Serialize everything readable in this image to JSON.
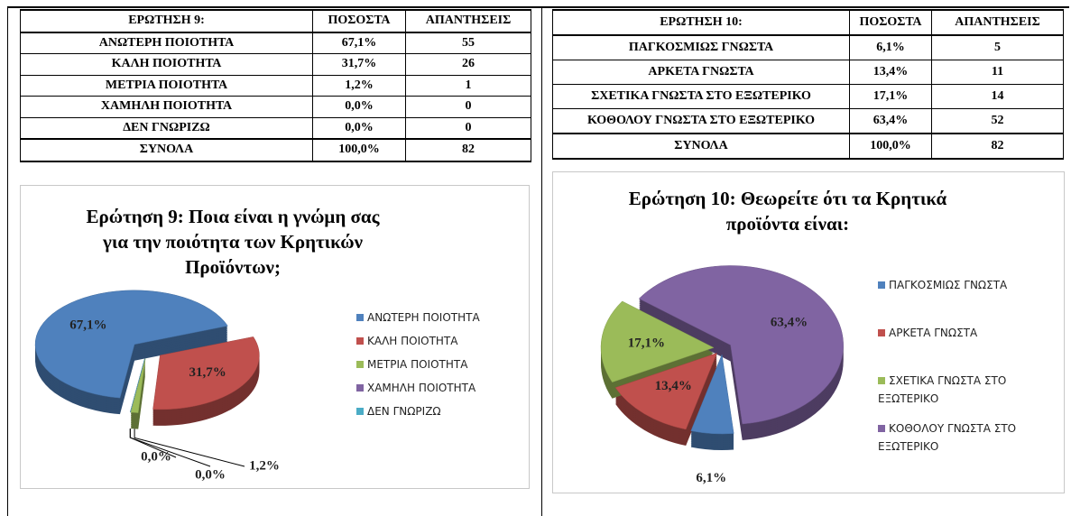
{
  "tables": [
    {
      "header": [
        "ΕΡΩΤΗΣΗ 9:",
        "ΠΟΣΟΣΤΑ",
        "ΑΠΑΝΤΗΣΕΙΣ"
      ],
      "rows": [
        [
          "ΑΝΩΤΕΡΗ ΠΟΙΟΤΗΤΑ",
          "67,1%",
          55
        ],
        [
          "ΚΑΛΗ ΠΟΙΟΤΗΤΑ",
          "31,7%",
          26
        ],
        [
          "ΜΕΤΡΙΑ ΠΟΙΟΤΗΤΑ",
          "1,2%",
          1
        ],
        [
          "ΧΑΜΗΛΗ ΠΟΙΟΤΗΤΑ",
          "0,0%",
          0
        ],
        [
          "ΔΕΝ ΓΝΩΡΙΖΩ",
          "0,0%",
          0
        ]
      ],
      "total": [
        "ΣΥΝΟΛΑ",
        "100,0%",
        82
      ]
    },
    {
      "header": [
        "ΕΡΩΤΗΣΗ 10:",
        "ΠΟΣΟΣΤΑ",
        "ΑΠΑΝΤΗΣΕΙΣ"
      ],
      "rows": [
        [
          "ΠΑΓΚΟΣΜΙΩΣ ΓΝΩΣΤΑ",
          "6,1%",
          5
        ],
        [
          "ΑΡΚΕΤΑ ΓΝΩΣΤΑ",
          "13,4%",
          11
        ],
        [
          "ΣΧΕΤΙΚΑ ΓΝΩΣΤΑ ΣΤΟ ΕΞΩΤΕΡΙΚΟ",
          "17,1%",
          14
        ],
        [
          "ΚΟΘΟΛΟΥ ΓΝΩΣΤΑ ΣΤΟ ΕΞΩΤΕΡΙΚΟ",
          "63,4%",
          52
        ]
      ],
      "total": [
        "ΣΥΝΟΛΑ",
        "100,0%",
        82
      ]
    }
  ],
  "chart_data": [
    {
      "type": "pie",
      "title": "Ερώτηση 9: Ποια είναι η γνώμη σας για την ποιότητα των Κρητικών Προϊόντων;",
      "categories": [
        "ΑΝΩΤΕΡΗ ΠΟΙΟΤΗΤΑ",
        "ΚΑΛΗ ΠΟΙΟΤΗΤΑ",
        "ΜΕΤΡΙΑ ΠΟΙΟΤΗΤΑ",
        "ΧΑΜΗΛΗ ΠΟΙΟΤΗΤΑ",
        "ΔΕΝ ΓΝΩΡΙΖΩ"
      ],
      "values": [
        67.1,
        31.7,
        1.2,
        0,
        0
      ],
      "value_labels": [
        "67,1%",
        "31,7%",
        "1,2%",
        "0,0%",
        "0,0%"
      ],
      "colors": [
        "#4f81bd",
        "#c0504d",
        "#9bbb59",
        "#8064a2",
        "#4bacc6"
      ],
      "legend": "right"
    },
    {
      "type": "pie",
      "title": "Ερώτηση 10: Θεωρείτε ότι τα Κρητικά προϊόντα είναι:",
      "categories": [
        "ΠΑΓΚΟΣΜΙΩΣ ΓΝΩΣΤΑ",
        "ΑΡΚΕΤΑ ΓΝΩΣΤΑ",
        "ΣΧΕΤΙΚΑ ΓΝΩΣΤΑ ΣΤΟ ΕΞΩΤΕΡΙΚΟ",
        "ΚΟΘΟΛΟΥ ΓΝΩΣΤΑ ΣΤΟ ΕΞΩΤΕΡΙΚΟ"
      ],
      "values": [
        6.1,
        13.4,
        17.1,
        63.4
      ],
      "value_labels": [
        "6,1%",
        "13,4%",
        "17,1%",
        "63,4%"
      ],
      "colors": [
        "#4f81bd",
        "#c0504d",
        "#9bbb59",
        "#8064a2"
      ],
      "legend": "right"
    }
  ]
}
